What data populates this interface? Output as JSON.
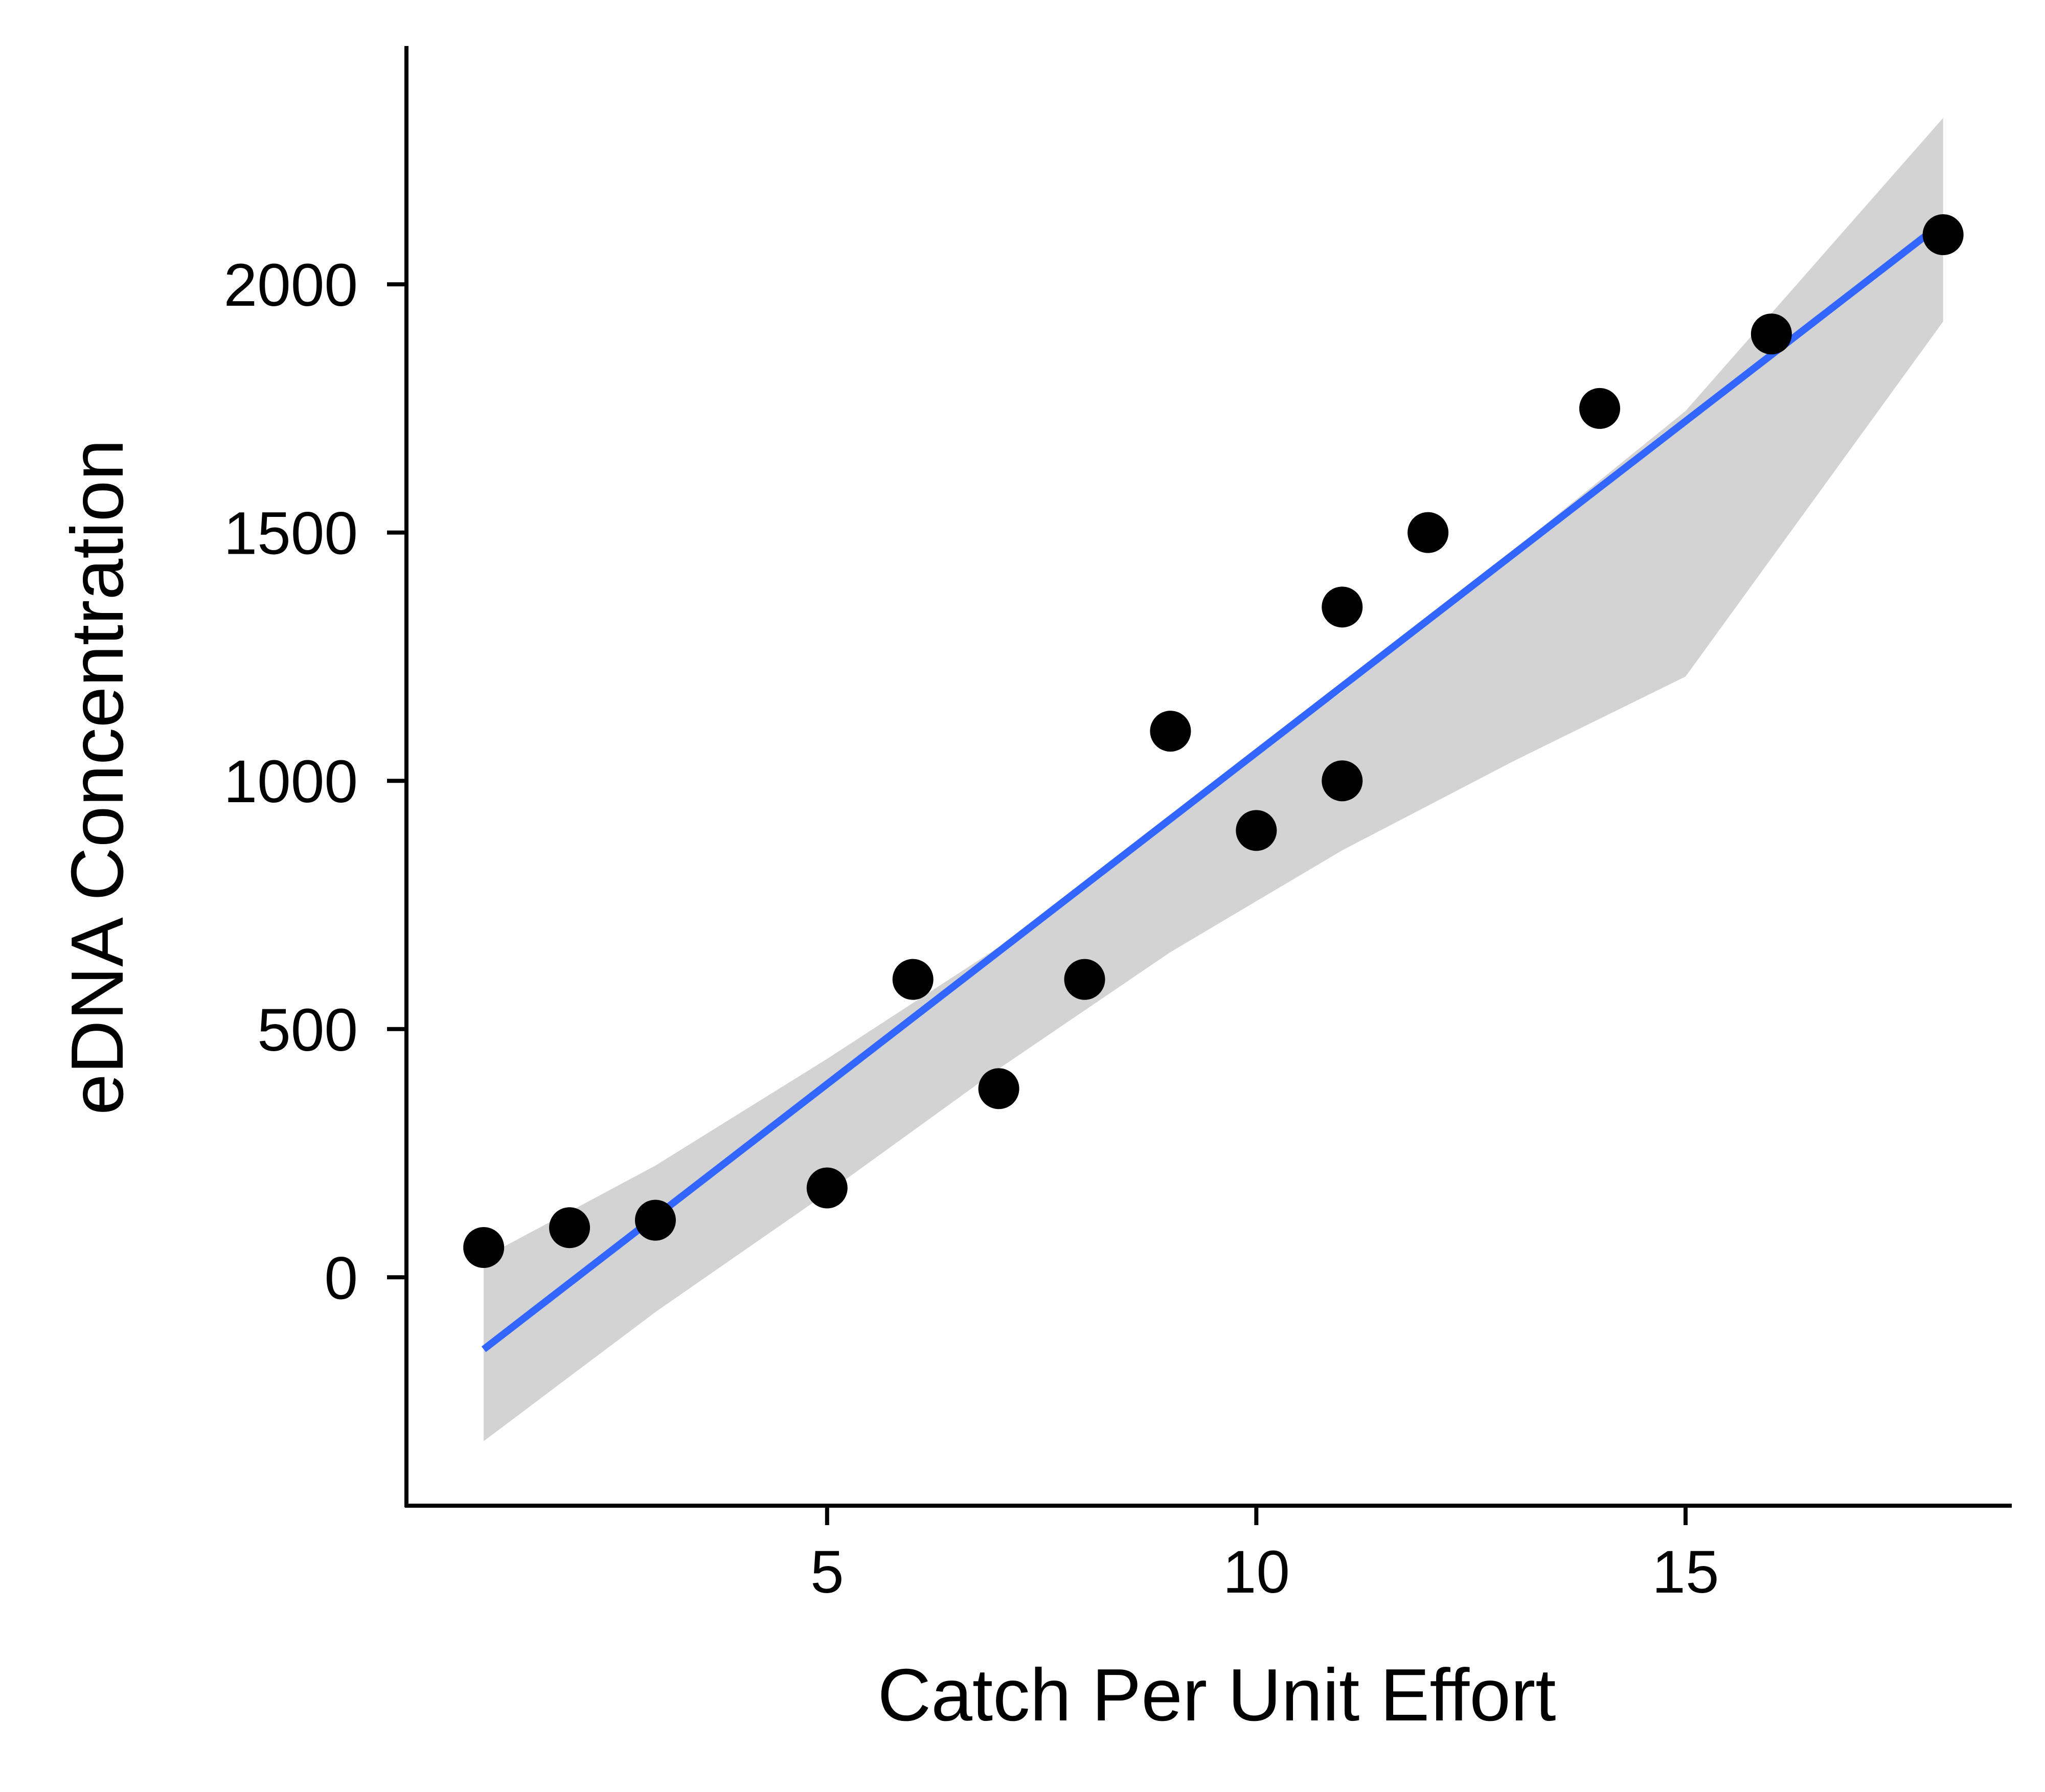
{
  "chart_data": {
    "type": "scatter",
    "title": "",
    "xlabel": "Catch Per Unit Effort",
    "ylabel": "eDNA Concentration",
    "xlim": [
      0.1,
      18.8
    ],
    "ylim": [
      -460,
      2480
    ],
    "x_ticks": [
      5,
      10,
      15
    ],
    "y_ticks": [
      0,
      500,
      1000,
      1500,
      2000
    ],
    "x_tick_labels": [
      "5",
      "10",
      "15"
    ],
    "y_tick_labels": [
      "0",
      "500",
      "1000",
      "1500",
      "2000"
    ],
    "grid": false,
    "legend": "none",
    "series": [
      {
        "type": "scatter",
        "points": [
          [
            1,
            60
          ],
          [
            2,
            100
          ],
          [
            3,
            115
          ],
          [
            5,
            180
          ],
          [
            6,
            600
          ],
          [
            7,
            380
          ],
          [
            8,
            600
          ],
          [
            9,
            1100
          ],
          [
            10,
            900
          ],
          [
            11,
            1350
          ],
          [
            11,
            1000
          ],
          [
            12,
            1500
          ],
          [
            14,
            1750
          ],
          [
            16,
            1900
          ],
          [
            18,
            2100
          ]
        ]
      },
      {
        "type": "line",
        "method": "linear fit",
        "points": [
          [
            1,
            -145
          ],
          [
            18,
            2125
          ]
        ]
      },
      {
        "type": "band",
        "method": "confidence interval",
        "x": [
          1,
          3,
          5,
          7,
          9,
          11,
          13,
          15,
          18
        ],
        "lower": [
          -330,
          -70,
          170,
          420,
          655,
          860,
          1040,
          1210,
          1925
        ],
        "upper": [
          40,
          225,
          440,
          665,
          930,
          1180,
          1465,
          1745,
          2335
        ]
      }
    ],
    "colors": {
      "points": "#000000",
      "line": "#3366FF",
      "band": "#D3D3D3",
      "axis": "#000000"
    }
  }
}
